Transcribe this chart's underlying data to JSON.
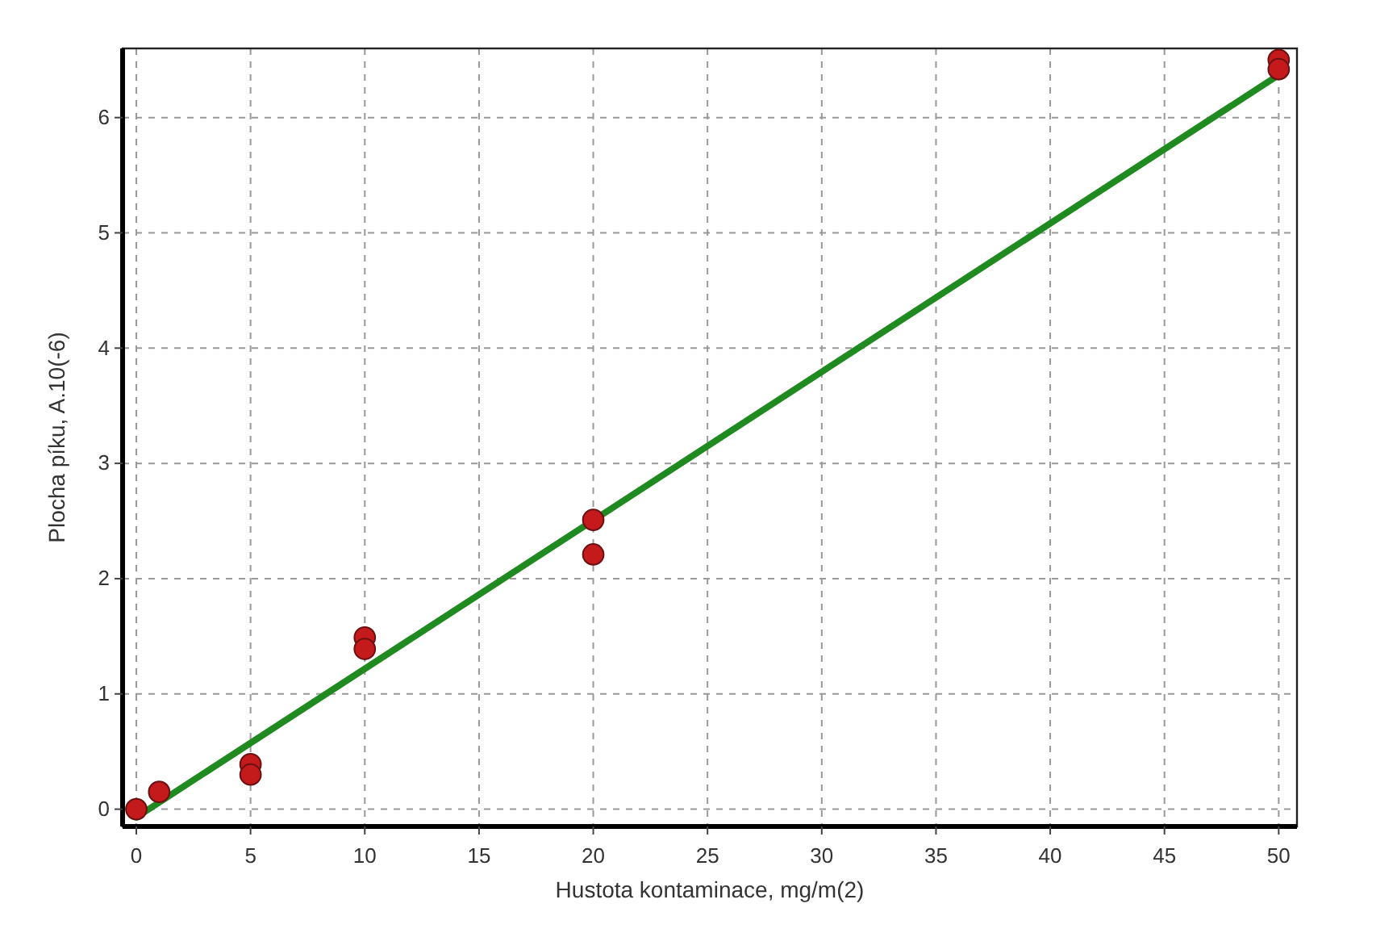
{
  "chart_data": {
    "type": "scatter",
    "xlabel": "Hustota kontaminace, mg/m(2)",
    "ylabel": "Plocha píku, A.10(-6)",
    "xlim": [
      -0.6,
      50.8
    ],
    "ylim": [
      -0.15,
      6.6
    ],
    "xticks": [
      0,
      5,
      10,
      15,
      20,
      25,
      30,
      35,
      40,
      45,
      50
    ],
    "yticks": [
      0,
      1,
      2,
      3,
      4,
      5,
      6
    ],
    "grid": true,
    "series": [
      {
        "color": "#c41a1c",
        "marker": "circle",
        "x": [
          0,
          1,
          5,
          5,
          10,
          10,
          20,
          20,
          50,
          50
        ],
        "values": [
          0.0,
          0.15,
          0.39,
          0.3,
          1.49,
          1.39,
          2.51,
          2.21,
          6.5,
          6.42
        ]
      },
      {
        "type": "line",
        "color": "#1f8a1f",
        "line_style": "solid",
        "x": [
          0,
          50
        ],
        "values": [
          -0.07,
          6.37
        ]
      }
    ]
  }
}
